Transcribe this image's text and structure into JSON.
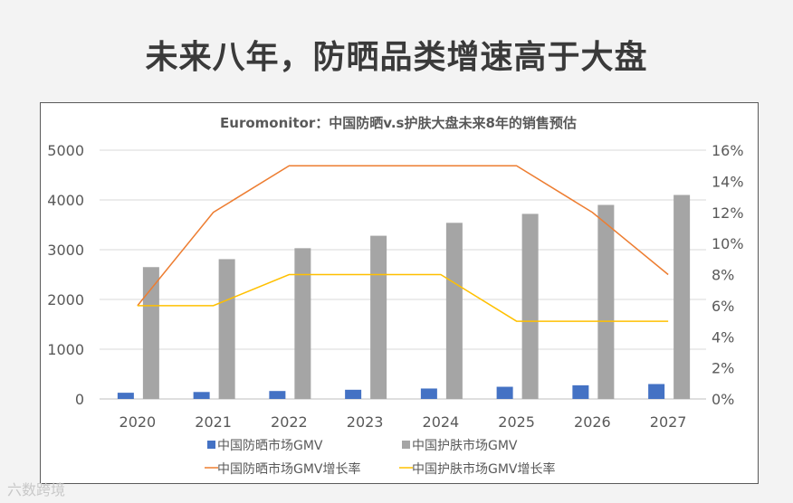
{
  "slide": {
    "title": "未来八年，防晒品类增速高于大盘"
  },
  "watermark": {
    "text": "六数跨境"
  },
  "chart_data": {
    "type": "bar+line",
    "title": "Euromonitor：中国防晒v.s护肤大盘未来8年的销售预估",
    "categories": [
      "2020",
      "2021",
      "2022",
      "2023",
      "2024",
      "2025",
      "2026",
      "2027"
    ],
    "y_left": {
      "min": 0,
      "max": 5000,
      "ticks": [
        "0",
        "1000",
        "2000",
        "3000",
        "4000",
        "5000"
      ]
    },
    "y_right": {
      "min": 0,
      "max": 0.16,
      "ticks": [
        "0%",
        "2%",
        "4%",
        "6%",
        "8%",
        "10%",
        "12%",
        "14%",
        "16%"
      ]
    },
    "grid": true,
    "legend_position": "bottom",
    "bar_series": [
      {
        "name": "中国防晒市场GMV",
        "color": "#4472c4",
        "values": [
          125,
          140,
          160,
          185,
          210,
          245,
          275,
          300
        ]
      },
      {
        "name": "中国护肤市场GMV",
        "color": "#a5a5a5",
        "values": [
          2650,
          2810,
          3030,
          3280,
          3540,
          3720,
          3900,
          4100
        ]
      }
    ],
    "line_series": [
      {
        "name": "中国防晒市场GMV增长率",
        "color": "#ed7d31",
        "values": [
          0.06,
          0.12,
          0.15,
          0.15,
          0.15,
          0.15,
          0.12,
          0.08
        ]
      },
      {
        "name": "中国护肤市场GMV增长率",
        "color": "#ffc000",
        "values": [
          0.06,
          0.06,
          0.08,
          0.08,
          0.08,
          0.05,
          0.05,
          0.05
        ]
      }
    ]
  }
}
